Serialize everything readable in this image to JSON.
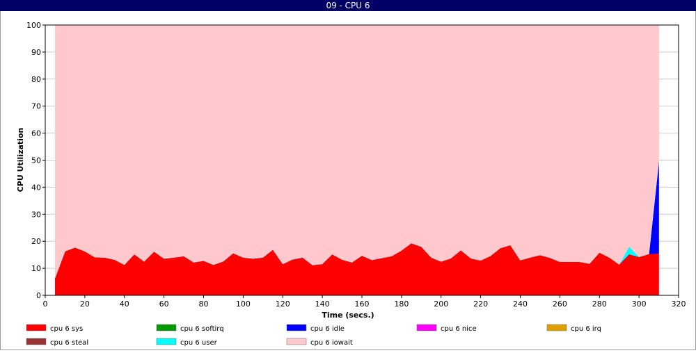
{
  "chart_data": {
    "type": "stacked_area",
    "title": "09 - CPU 6",
    "xlabel": "Time (secs.)",
    "ylabel": "CPU Utilization",
    "x": [
      5,
      10,
      15,
      20,
      25,
      30,
      35,
      40,
      45,
      50,
      55,
      60,
      65,
      70,
      75,
      80,
      85,
      90,
      95,
      100,
      105,
      110,
      115,
      120,
      125,
      130,
      135,
      140,
      145,
      150,
      155,
      160,
      165,
      170,
      175,
      180,
      185,
      190,
      195,
      200,
      205,
      210,
      215,
      220,
      225,
      230,
      235,
      240,
      245,
      250,
      255,
      260,
      265,
      270,
      275,
      280,
      285,
      290,
      295,
      300,
      305,
      310
    ],
    "series": [
      {
        "name": "cpu 6 sys",
        "color": "#ff0000",
        "values": [
          6.5,
          16.3,
          17.7,
          16.3,
          14.1,
          14.0,
          13.2,
          11.3,
          15.2,
          12.5,
          16.2,
          13.6,
          14.0,
          14.5,
          12.2,
          12.8,
          11.3,
          12.6,
          15.6,
          14.0,
          13.6,
          14.0,
          16.9,
          11.6,
          13.3,
          14.0,
          11.2,
          11.6,
          15.2,
          13.2,
          12.2,
          14.7,
          13.1,
          13.8,
          14.5,
          16.6,
          19.3,
          18.0,
          14.0,
          12.5,
          13.7,
          16.7,
          13.7,
          12.9,
          14.6,
          17.5,
          18.6,
          13.0,
          14.0,
          14.9,
          13.9,
          12.4,
          12.4,
          12.4,
          11.7,
          15.8,
          14.0,
          11.4,
          15.2,
          14.2,
          15.3,
          15.5
        ]
      },
      {
        "name": "cpu 6 softirq",
        "color": "#009900",
        "values": [
          0,
          0,
          0,
          0,
          0,
          0,
          0,
          0,
          0,
          0,
          0,
          0,
          0,
          0,
          0,
          0,
          0,
          0,
          0,
          0,
          0,
          0,
          0,
          0,
          0,
          0,
          0,
          0,
          0,
          0,
          0,
          0,
          0,
          0,
          0,
          0,
          0,
          0,
          0,
          0,
          0,
          0,
          0,
          0,
          0,
          0,
          0,
          0,
          0,
          0,
          0,
          0,
          0,
          0,
          0,
          0,
          0,
          0,
          0,
          0,
          0,
          0
        ]
      },
      {
        "name": "cpu 6 idle",
        "color": "#0000ff",
        "values": [
          0,
          0,
          0,
          0,
          0,
          0,
          0,
          0,
          0,
          0,
          0,
          0,
          0,
          0,
          0,
          0,
          0,
          0,
          0,
          0,
          0,
          0,
          0,
          0,
          0,
          0,
          0,
          0,
          0,
          0,
          0,
          0,
          0,
          0,
          0,
          0,
          0,
          0,
          0,
          0,
          0,
          0,
          0,
          0,
          0,
          0,
          0,
          0,
          0,
          0,
          0,
          0,
          0,
          0,
          0,
          0,
          0,
          0,
          0,
          0,
          0,
          34
        ]
      },
      {
        "name": "cpu 6 nice",
        "color": "#ff00ff",
        "values": [
          0,
          0,
          0,
          0,
          0,
          0,
          0,
          0,
          0,
          0,
          0,
          0,
          0,
          0,
          0,
          0,
          0,
          0,
          0,
          0,
          0,
          0,
          0,
          0,
          0,
          0,
          0,
          0,
          0,
          0,
          0,
          0,
          0,
          0,
          0,
          0,
          0,
          0,
          0,
          0,
          0,
          0,
          0,
          0,
          0,
          0,
          0,
          0,
          0,
          0,
          0,
          0,
          0,
          0,
          0,
          0,
          0,
          0,
          0,
          0,
          0,
          0
        ]
      },
      {
        "name": "cpu 6 irq",
        "color": "#e0a000",
        "values": [
          0,
          0,
          0,
          0,
          0,
          0,
          0,
          0,
          0,
          0,
          0,
          0,
          0,
          0,
          0,
          0,
          0,
          0,
          0,
          0,
          0,
          0,
          0,
          0,
          0,
          0,
          0,
          0,
          0,
          0,
          0,
          0,
          0,
          0,
          0,
          0,
          0,
          0,
          0,
          0,
          0,
          0,
          0,
          0,
          0,
          0,
          0,
          0,
          0,
          0,
          0,
          0,
          0,
          0,
          0,
          0,
          0,
          0,
          0,
          0,
          0,
          0
        ]
      },
      {
        "name": "cpu 6 steal",
        "color": "#993333",
        "values": [
          0,
          0,
          0,
          0,
          0,
          0,
          0,
          0,
          0,
          0,
          0,
          0,
          0,
          0,
          0,
          0,
          0,
          0,
          0,
          0,
          0,
          0,
          0,
          0,
          0,
          0,
          0,
          0,
          0,
          0,
          0,
          0,
          0,
          0,
          0,
          0,
          0,
          0,
          0,
          0,
          0,
          0,
          0,
          0,
          0,
          0,
          0,
          0,
          0,
          0,
          0,
          0,
          0,
          0,
          0,
          0,
          0,
          0,
          0,
          0,
          0,
          0
        ]
      },
      {
        "name": "cpu 6 user",
        "color": "#00ffff",
        "values": [
          0,
          0,
          0,
          0,
          0,
          0,
          0,
          0,
          0,
          0,
          0,
          0,
          0,
          0,
          0,
          0,
          0,
          0,
          0,
          0,
          0,
          0,
          0,
          0,
          0,
          0,
          0,
          0,
          0,
          0,
          0,
          0,
          0,
          0,
          0,
          0,
          0,
          0,
          0,
          0,
          0,
          0,
          0,
          0,
          0,
          0,
          0,
          0,
          0,
          0,
          0,
          0,
          0,
          0,
          0,
          0,
          0,
          0,
          2.8,
          0,
          0,
          0
        ]
      },
      {
        "name": "cpu 6 iowait",
        "color": "#ffc8cc",
        "values": [
          93.5,
          83.7,
          82.3,
          83.7,
          85.9,
          86.0,
          86.8,
          88.7,
          84.8,
          87.5,
          83.8,
          86.4,
          86.0,
          85.5,
          87.8,
          87.2,
          88.7,
          87.4,
          84.4,
          86.0,
          86.4,
          86.0,
          83.1,
          88.4,
          86.7,
          86.0,
          88.8,
          88.4,
          84.8,
          86.8,
          87.8,
          85.3,
          86.9,
          86.2,
          85.5,
          83.4,
          80.7,
          82.0,
          86.0,
          87.5,
          86.3,
          83.3,
          86.3,
          87.1,
          85.4,
          82.5,
          81.4,
          87.0,
          86.0,
          85.1,
          86.1,
          87.6,
          87.6,
          87.6,
          88.3,
          84.2,
          86.0,
          88.6,
          82.0,
          85.8,
          84.7,
          50.5
        ]
      }
    ],
    "xlim": [
      0,
      320
    ],
    "xticks": [
      0,
      20,
      40,
      60,
      80,
      100,
      120,
      140,
      160,
      180,
      200,
      220,
      240,
      260,
      280,
      300,
      320
    ],
    "ylim": [
      0,
      100
    ],
    "yticks": [
      0,
      10,
      20,
      30,
      40,
      50,
      60,
      70,
      80,
      90,
      100
    ],
    "grid": true
  }
}
